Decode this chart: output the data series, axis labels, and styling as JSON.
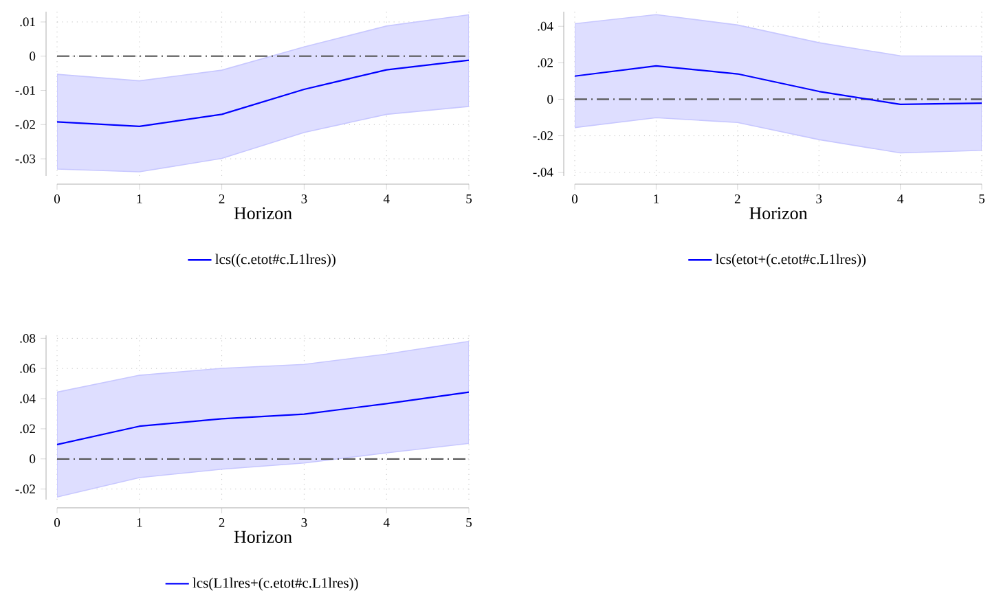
{
  "chart_data": [
    {
      "type": "line",
      "xlabel": "Horizon",
      "x": [
        0,
        1,
        2,
        3,
        4,
        5
      ],
      "xlim": [
        0,
        5
      ],
      "xticks": [
        0,
        1,
        2,
        3,
        4,
        5
      ],
      "ylim": [
        -0.035,
        0.013
      ],
      "yticks": [
        {
          "value": -0.03,
          "label": "-.03"
        },
        {
          "value": -0.02,
          "label": "-.02"
        },
        {
          "value": -0.01,
          "label": "-.01"
        },
        0,
        {
          "value": 0.01,
          "label": ".01"
        }
      ],
      "grid": true,
      "legend": "bottom",
      "ref_lines": [
        {
          "axis": "y",
          "value": 0,
          "color": "#555555",
          "line_style": "dashed"
        }
      ],
      "series": [
        {
          "name": "lcs((c.etot#c.L1lres))",
          "color": "#0000ff",
          "values": [
            -0.0192,
            -0.0205,
            -0.017,
            -0.0097,
            -0.004,
            -0.0012
          ],
          "lower": [
            -0.033,
            -0.0338,
            -0.0299,
            -0.0223,
            -0.017,
            -0.0147
          ],
          "upper": [
            -0.0053,
            -0.0072,
            -0.0041,
            0.0027,
            0.0088,
            0.0121
          ]
        }
      ]
    },
    {
      "type": "line",
      "xlabel": "Horizon",
      "x": [
        0,
        1,
        2,
        3,
        4,
        5
      ],
      "xlim": [
        0,
        5
      ],
      "xticks": [
        0,
        1,
        2,
        3,
        4,
        5
      ],
      "ylim": [
        -0.042,
        0.048
      ],
      "yticks": [
        {
          "value": -0.04,
          "label": "-.04"
        },
        {
          "value": -0.02,
          "label": "-.02"
        },
        0,
        {
          "value": 0.02,
          "label": ".02"
        },
        {
          "value": 0.04,
          "label": ".04"
        }
      ],
      "grid": true,
      "legend": "bottom",
      "ref_lines": [
        {
          "axis": "y",
          "value": 0,
          "color": "#555555",
          "line_style": "dashed"
        }
      ],
      "series": [
        {
          "name": "lcs(etot+(c.etot#c.L1lres))",
          "color": "#0000ff",
          "values": [
            0.0127,
            0.0183,
            0.0139,
            0.0043,
            -0.0028,
            -0.0021
          ],
          "lower": [
            -0.0155,
            -0.0101,
            -0.0127,
            -0.0221,
            -0.0294,
            -0.028
          ],
          "upper": [
            0.0414,
            0.0464,
            0.0407,
            0.031,
            0.0238,
            0.0237
          ]
        }
      ]
    },
    {
      "type": "line",
      "xlabel": "Horizon",
      "x": [
        0,
        1,
        2,
        3,
        4,
        5
      ],
      "xlim": [
        0,
        5
      ],
      "xticks": [
        0,
        1,
        2,
        3,
        4,
        5
      ],
      "ylim": [
        -0.027,
        0.082
      ],
      "yticks": [
        {
          "value": -0.02,
          "label": "-.02"
        },
        0,
        {
          "value": 0.02,
          "label": ".02"
        },
        {
          "value": 0.04,
          "label": ".04"
        },
        {
          "value": 0.06,
          "label": ".06"
        },
        {
          "value": 0.08,
          "label": ".08"
        }
      ],
      "grid": true,
      "legend": "bottom",
      "ref_lines": [
        {
          "axis": "y",
          "value": 0,
          "color": "#555555",
          "line_style": "dashed"
        }
      ],
      "series": [
        {
          "name": "lcs(L1lres+(c.etot#c.L1lres))",
          "color": "#0000ff",
          "values": [
            0.0095,
            0.0217,
            0.0266,
            0.0297,
            0.0367,
            0.0443
          ],
          "lower": [
            -0.0253,
            -0.0124,
            -0.0068,
            -0.0027,
            0.004,
            0.0103
          ],
          "upper": [
            0.0443,
            0.0555,
            0.0601,
            0.0627,
            0.0696,
            0.078
          ]
        }
      ]
    }
  ]
}
